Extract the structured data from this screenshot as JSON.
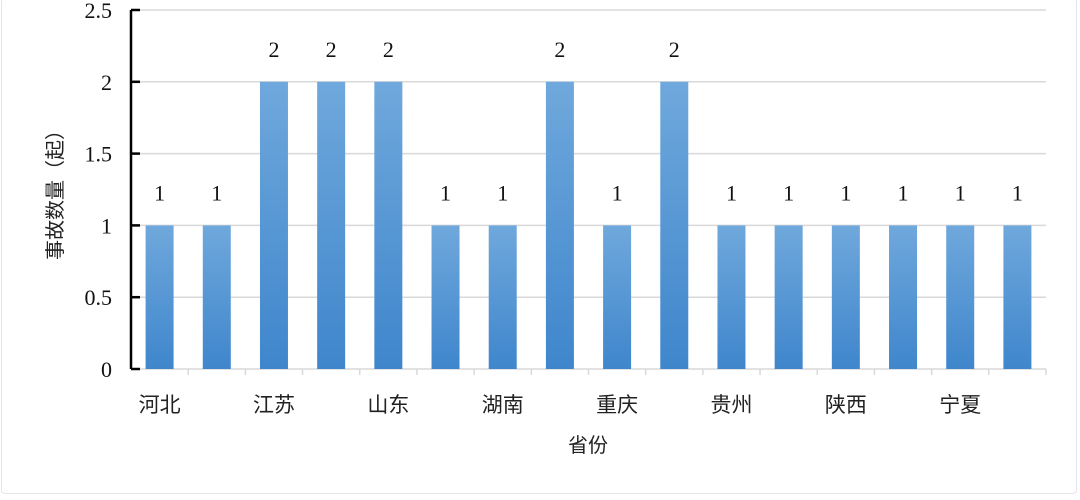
{
  "chart_data": {
    "type": "bar",
    "categories": [
      "河北",
      "",
      "江苏",
      "",
      "山东",
      "",
      "湖南",
      "",
      "重庆",
      "",
      "贵州",
      "",
      "陕西",
      "",
      "宁夏",
      ""
    ],
    "values": [
      1,
      1,
      2,
      2,
      2,
      1,
      1,
      2,
      1,
      2,
      1,
      1,
      1,
      1,
      1,
      1
    ],
    "data_labels": [
      "1",
      "1",
      "2",
      "2",
      "2",
      "1",
      "1",
      "2",
      "1",
      "2",
      "1",
      "1",
      "1",
      "1",
      "1",
      "1"
    ],
    "title": "",
    "xlabel": "省份",
    "ylabel": "事故数量（起）",
    "ylim": [
      0,
      2.5
    ],
    "yticks": [
      "0",
      "0.5",
      "1",
      "1.5",
      "2",
      "2.5"
    ],
    "grid": true,
    "legend": "none",
    "bar_color": "#5b9bd5"
  }
}
